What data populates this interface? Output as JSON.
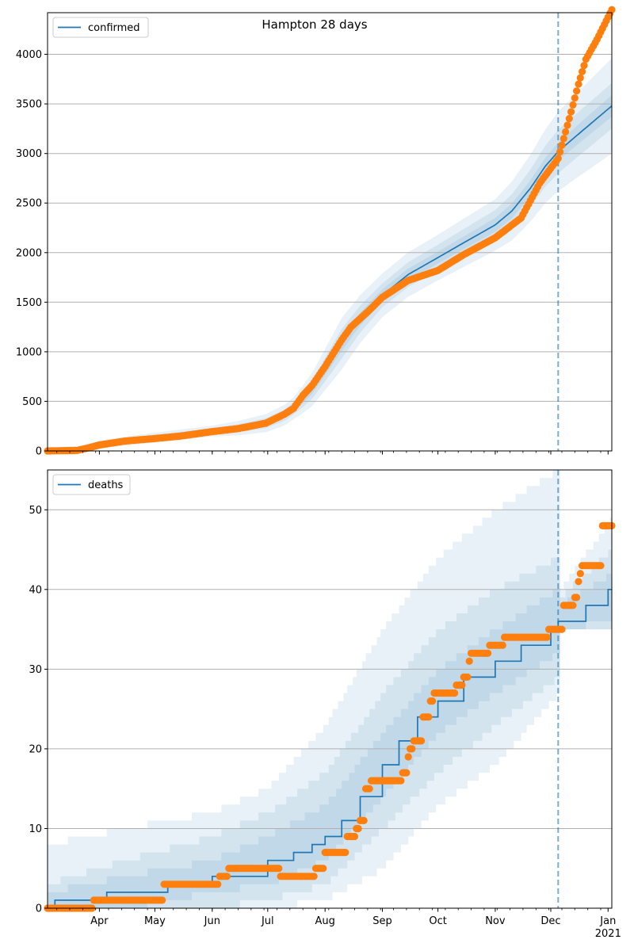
{
  "chart_data": [
    {
      "type": "line",
      "title": "Hampton 28 days",
      "legend": {
        "label": "confirmed",
        "placement": "top-left"
      },
      "x_axis": {
        "type": "date",
        "range": [
          "2020-03-04",
          "2021-01-03"
        ],
        "major_ticks": [
          {
            "date": "2020-04-01",
            "label": "Apr"
          },
          {
            "date": "2020-05-01",
            "label": "May"
          },
          {
            "date": "2020-06-01",
            "label": "Jun"
          },
          {
            "date": "2020-07-01",
            "label": "Jul"
          },
          {
            "date": "2020-08-01",
            "label": "Aug"
          },
          {
            "date": "2020-09-01",
            "label": "Sep"
          },
          {
            "date": "2020-10-01",
            "label": "Oct"
          },
          {
            "date": "2020-11-01",
            "label": "Nov"
          },
          {
            "date": "2020-12-01",
            "label": "Dec"
          },
          {
            "date": "2021-01-01",
            "label": "Jan\n2021"
          }
        ],
        "tick_labels_shown": false
      },
      "y_axis": {
        "range": [
          0,
          4420
        ],
        "ticks": [
          0,
          500,
          1000,
          1500,
          2000,
          2500,
          3000,
          3500,
          4000
        ]
      },
      "grid": "horizontal",
      "forecast_start": "2020-12-05",
      "model_line": {
        "name": "confirmed",
        "color": "#1f77b4",
        "points": [
          [
            "2020-03-04",
            0
          ],
          [
            "2020-03-20",
            10
          ],
          [
            "2020-03-28",
            45
          ],
          [
            "2020-04-05",
            75
          ],
          [
            "2020-04-20",
            110
          ],
          [
            "2020-05-01",
            135
          ],
          [
            "2020-05-15",
            165
          ],
          [
            "2020-06-01",
            200
          ],
          [
            "2020-06-15",
            230
          ],
          [
            "2020-06-30",
            280
          ],
          [
            "2020-07-10",
            360
          ],
          [
            "2020-07-15",
            430
          ],
          [
            "2020-07-20",
            520
          ],
          [
            "2020-07-25",
            620
          ],
          [
            "2020-08-01",
            820
          ],
          [
            "2020-08-10",
            1080
          ],
          [
            "2020-08-20",
            1330
          ],
          [
            "2020-09-01",
            1570
          ],
          [
            "2020-09-15",
            1780
          ],
          [
            "2020-10-01",
            1950
          ],
          [
            "2020-10-15",
            2100
          ],
          [
            "2020-11-01",
            2280
          ],
          [
            "2020-11-10",
            2420
          ],
          [
            "2020-11-20",
            2650
          ],
          [
            "2020-11-28",
            2870
          ],
          [
            "2020-12-05",
            3020
          ],
          [
            "2020-12-15",
            3180
          ],
          [
            "2021-01-03",
            3480
          ]
        ],
        "bands_halfwidth": [
          [
            "2020-03-04",
            [
              10,
              20,
              35
            ]
          ],
          [
            "2020-06-01",
            [
              15,
              30,
              55
            ]
          ],
          [
            "2020-07-15",
            [
              30,
              60,
              110
            ]
          ],
          [
            "2020-08-10",
            [
              70,
              150,
              260
            ]
          ],
          [
            "2020-09-01",
            [
              60,
              120,
              220
            ]
          ],
          [
            "2020-10-01",
            [
              60,
              130,
              230
            ]
          ],
          [
            "2020-11-01",
            [
              70,
              150,
              260
            ]
          ],
          [
            "2020-12-05",
            [
              90,
              220,
              400
            ]
          ],
          [
            "2021-01-03",
            [
              110,
              230,
              480
            ]
          ]
        ]
      },
      "observed": {
        "color": "#ff7f0e",
        "points": [
          [
            "2020-03-04",
            0
          ],
          [
            "2020-03-20",
            5
          ],
          [
            "2020-03-26",
            30
          ],
          [
            "2020-04-01",
            60
          ],
          [
            "2020-04-15",
            100
          ],
          [
            "2020-05-01",
            125
          ],
          [
            "2020-05-15",
            150
          ],
          [
            "2020-06-01",
            195
          ],
          [
            "2020-06-15",
            225
          ],
          [
            "2020-06-30",
            280
          ],
          [
            "2020-07-10",
            370
          ],
          [
            "2020-07-15",
            430
          ],
          [
            "2020-07-20",
            560
          ],
          [
            "2020-07-25",
            660
          ],
          [
            "2020-08-01",
            850
          ],
          [
            "2020-08-06",
            1000
          ],
          [
            "2020-08-10",
            1120
          ],
          [
            "2020-08-15",
            1250
          ],
          [
            "2020-08-25",
            1420
          ],
          [
            "2020-09-01",
            1550
          ],
          [
            "2020-09-15",
            1720
          ],
          [
            "2020-10-01",
            1820
          ],
          [
            "2020-10-15",
            1980
          ],
          [
            "2020-11-01",
            2150
          ],
          [
            "2020-11-15",
            2350
          ],
          [
            "2020-11-25",
            2700
          ],
          [
            "2020-12-05",
            2950
          ],
          [
            "2020-12-08",
            3150
          ],
          [
            "2020-12-12",
            3420
          ],
          [
            "2020-12-16",
            3700
          ],
          [
            "2020-12-20",
            3950
          ],
          [
            "2020-12-26",
            4150
          ],
          [
            "2021-01-03",
            4450
          ]
        ]
      }
    },
    {
      "type": "line",
      "legend": {
        "label": "deaths",
        "placement": "top-left"
      },
      "x_axis": {
        "type": "date",
        "range": [
          "2020-03-04",
          "2021-01-03"
        ],
        "major_ticks": [
          {
            "date": "2020-04-01",
            "label": "Apr"
          },
          {
            "date": "2020-05-01",
            "label": "May"
          },
          {
            "date": "2020-06-01",
            "label": "Jun"
          },
          {
            "date": "2020-07-01",
            "label": "Jul"
          },
          {
            "date": "2020-08-01",
            "label": "Aug"
          },
          {
            "date": "2020-09-01",
            "label": "Sep"
          },
          {
            "date": "2020-10-01",
            "label": "Oct"
          },
          {
            "date": "2020-11-01",
            "label": "Nov"
          },
          {
            "date": "2020-12-01",
            "label": "Dec"
          },
          {
            "date": "2021-01-01",
            "label": "Jan\n2021"
          }
        ],
        "tick_labels_shown": true
      },
      "y_axis": {
        "range": [
          0,
          55
        ],
        "ticks": [
          0,
          10,
          20,
          30,
          40,
          50
        ]
      },
      "grid": "horizontal",
      "forecast_start": "2020-12-05",
      "model_line": {
        "name": "deaths",
        "color": "#1f77b4",
        "steps": [
          [
            "2020-03-04",
            0
          ],
          [
            "2020-03-08",
            1
          ],
          [
            "2020-04-05",
            2
          ],
          [
            "2020-05-08",
            3
          ],
          [
            "2020-06-01",
            4
          ],
          [
            "2020-07-01",
            6
          ],
          [
            "2020-07-15",
            7
          ],
          [
            "2020-07-25",
            8
          ],
          [
            "2020-08-01",
            9
          ],
          [
            "2020-08-10",
            11
          ],
          [
            "2020-08-20",
            14
          ],
          [
            "2020-09-01",
            18
          ],
          [
            "2020-09-10",
            21
          ],
          [
            "2020-09-20",
            24
          ],
          [
            "2020-10-01",
            26
          ],
          [
            "2020-10-15",
            29
          ],
          [
            "2020-11-01",
            31
          ],
          [
            "2020-11-15",
            33
          ],
          [
            "2020-12-01",
            35
          ],
          [
            "2020-12-05",
            36
          ],
          [
            "2020-12-10",
            36
          ],
          [
            "2020-12-20",
            38
          ],
          [
            "2021-01-01",
            40
          ]
        ],
        "bands": [
          [
            "2020-03-04",
            [
              0,
              2
            ],
            [
              0,
              3
            ],
            [
              0,
              8
            ]
          ],
          [
            "2020-04-15",
            [
              0,
              4
            ],
            [
              0,
              6
            ],
            [
              0,
              10
            ]
          ],
          [
            "2020-06-01",
            [
              2,
              6
            ],
            [
              0,
              9
            ],
            [
              0,
              12
            ]
          ],
          [
            "2020-07-01",
            [
              3,
              9
            ],
            [
              1,
              12
            ],
            [
              0,
              15
            ]
          ],
          [
            "2020-08-01",
            [
              6,
              13
            ],
            [
              3,
              17
            ],
            [
              1,
              23
            ]
          ],
          [
            "2020-09-01",
            [
              14,
              22
            ],
            [
              10,
              27
            ],
            [
              5,
              35
            ]
          ],
          [
            "2020-10-01",
            [
              22,
              30
            ],
            [
              17,
              35
            ],
            [
              13,
              44
            ]
          ],
          [
            "2020-11-01",
            [
              27,
              35
            ],
            [
              23,
              40
            ],
            [
              18,
              50
            ]
          ],
          [
            "2020-12-05",
            [
              32,
              40
            ],
            [
              29,
              44
            ],
            [
              27,
              55
            ]
          ],
          [
            "2020-12-06",
            [
              35,
              38
            ],
            [
              35,
              39
            ],
            [
              35,
              40
            ]
          ],
          [
            "2021-01-03",
            [
              36,
              42
            ],
            [
              35,
              45
            ],
            [
              35,
              49
            ]
          ]
        ]
      },
      "observed": {
        "color": "#ff7f0e",
        "steps": [
          [
            "2020-03-04",
            0
          ],
          [
            "2020-03-29",
            1
          ],
          [
            "2020-05-06",
            3
          ],
          [
            "2020-06-05",
            4
          ],
          [
            "2020-06-10",
            5
          ],
          [
            "2020-07-08",
            4
          ],
          [
            "2020-07-27",
            5
          ],
          [
            "2020-08-01",
            7
          ],
          [
            "2020-08-13",
            9
          ],
          [
            "2020-08-18",
            10
          ],
          [
            "2020-08-20",
            11
          ],
          [
            "2020-08-23",
            15
          ],
          [
            "2020-08-26",
            16
          ],
          [
            "2020-09-12",
            17
          ],
          [
            "2020-09-15",
            19
          ],
          [
            "2020-09-16",
            20
          ],
          [
            "2020-09-18",
            21
          ],
          [
            "2020-09-23",
            24
          ],
          [
            "2020-09-27",
            26
          ],
          [
            "2020-09-29",
            27
          ],
          [
            "2020-10-11",
            28
          ],
          [
            "2020-10-15",
            29
          ],
          [
            "2020-10-18",
            31
          ],
          [
            "2020-10-19",
            32
          ],
          [
            "2020-10-29",
            33
          ],
          [
            "2020-11-06",
            34
          ],
          [
            "2020-11-30",
            35
          ],
          [
            "2020-12-08",
            38
          ],
          [
            "2020-12-14",
            39
          ],
          [
            "2020-12-16",
            41
          ],
          [
            "2020-12-17",
            42
          ],
          [
            "2020-12-18",
            43
          ],
          [
            "2020-12-29",
            48
          ],
          [
            "2021-01-03",
            48
          ]
        ]
      }
    }
  ]
}
